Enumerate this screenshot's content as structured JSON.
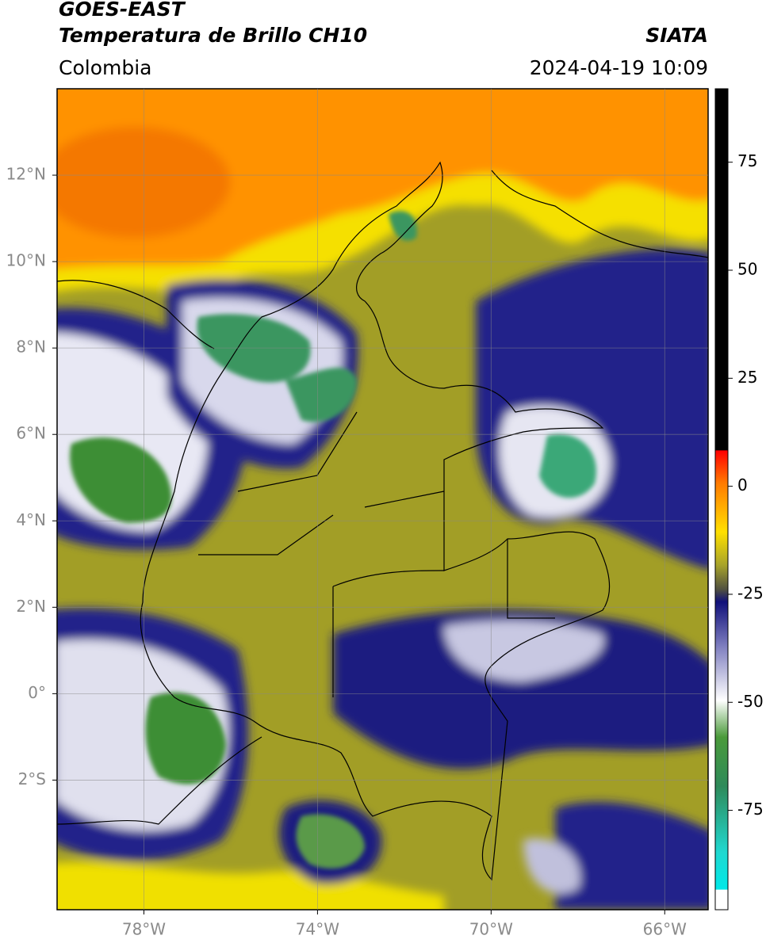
{
  "header": {
    "satellite": "GOES-EAST",
    "product": "Temperatura de Brillo CH10",
    "source": "SIATA",
    "region": "Colombia",
    "datetime": "2024-04-19 10:09"
  },
  "map": {
    "xlim": [
      -80,
      -65
    ],
    "ylim": [
      -5,
      14
    ],
    "xticks": [
      {
        "value": -78,
        "label": "78°W"
      },
      {
        "value": -74,
        "label": "74°W"
      },
      {
        "value": -70,
        "label": "70°W"
      },
      {
        "value": -66,
        "label": "66°W"
      }
    ],
    "yticks": [
      {
        "value": 12,
        "label": "12°N"
      },
      {
        "value": 10,
        "label": "10°N"
      },
      {
        "value": 8,
        "label": "8°N"
      },
      {
        "value": 6,
        "label": "6°N"
      },
      {
        "value": 4,
        "label": "4°N"
      },
      {
        "value": 2,
        "label": "2°N"
      },
      {
        "value": 0,
        "label": "0°"
      },
      {
        "value": -2,
        "label": "2°S"
      }
    ],
    "grid": true
  },
  "colorbar": {
    "lim": [
      -98,
      92
    ],
    "ticks": [
      75,
      50,
      25,
      0,
      -25,
      -50,
      -75
    ]
  }
}
